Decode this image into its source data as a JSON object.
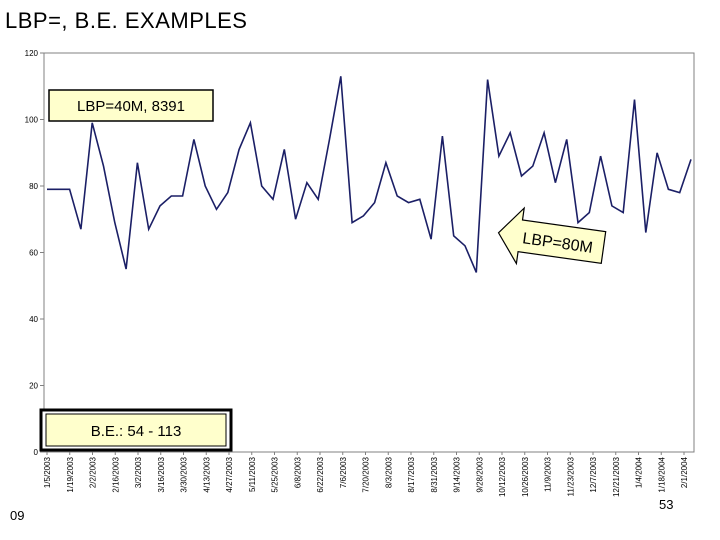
{
  "slide": {
    "title": "LBP=, B.E. EXAMPLES",
    "footer_left": "09",
    "page_number": "53"
  },
  "colors": {
    "line": "#1b1f66",
    "callout_fill": "#ffffcc",
    "arrow_fill": "#ffffcc"
  },
  "chart_data": {
    "type": "line",
    "title": "",
    "xlabel": "",
    "ylabel": "",
    "ylim": [
      0,
      120
    ],
    "yticks": [
      0,
      20,
      40,
      60,
      80,
      100,
      120
    ],
    "grid": false,
    "x_tick_labels": [
      "1/5/2003",
      "1/19/2003",
      "2/2/2003",
      "2/16/2003",
      "3/2/2003",
      "3/16/2003",
      "3/30/2003",
      "4/13/2003",
      "4/27/2003",
      "5/11/2003",
      "5/25/2003",
      "6/8/2003",
      "6/22/2003",
      "7/6/2003",
      "7/20/2003",
      "8/3/2003",
      "8/17/2003",
      "8/31/2003",
      "9/14/2003",
      "9/28/2003",
      "10/12/2003",
      "10/26/2003",
      "11/9/2003",
      "11/23/2003",
      "12/7/2003",
      "12/21/2003",
      "1/4/2004",
      "1/18/2004",
      "2/1/2004"
    ],
    "series": [
      {
        "values": [
          79,
          79,
          79,
          67,
          99,
          86,
          69,
          55,
          87,
          67,
          74,
          77,
          77,
          94,
          80,
          73,
          78,
          91,
          99,
          80,
          76,
          91,
          70,
          81,
          76,
          94,
          113,
          69,
          71,
          75,
          87,
          77,
          75,
          76,
          64,
          95,
          65,
          62,
          54,
          112,
          89,
          96,
          83,
          86,
          96,
          81,
          94,
          69,
          72,
          89,
          74,
          72,
          106,
          66,
          90,
          79,
          78,
          88
        ]
      }
    ],
    "annotations": [
      {
        "text": "LBP=40M, 8391",
        "kind": "callout_box"
      },
      {
        "text": "LBP=80M",
        "kind": "arrow",
        "points_to_index": 38
      },
      {
        "text": "B.E.:  54 - 113",
        "kind": "callout_box"
      }
    ]
  }
}
